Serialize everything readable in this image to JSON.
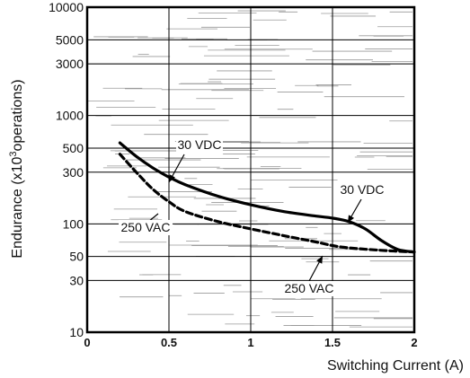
{
  "chart_data": {
    "type": "line",
    "title": "",
    "xlabel": "Switching Current (A)",
    "ylabel": "Endurance (x10³operations)",
    "ylabel_parts": {
      "prefix": "Endurance (x10",
      "sup": "3",
      "suffix": "operations)"
    },
    "xlim": [
      0,
      2
    ],
    "ylim": [
      10,
      10000
    ],
    "yscale": "log",
    "grid": true,
    "xticks": [
      {
        "value": 0,
        "label": "0"
      },
      {
        "value": 0.5,
        "label": "0.5"
      },
      {
        "value": 1,
        "label": "1"
      },
      {
        "value": 1.5,
        "label": "1.5"
      },
      {
        "value": 2,
        "label": "2"
      }
    ],
    "yticks": [
      {
        "value": 10000,
        "label": "10000"
      },
      {
        "value": 5000,
        "label": "5000"
      },
      {
        "value": 3000,
        "label": "3000"
      },
      {
        "value": 1000,
        "label": "1000"
      },
      {
        "value": 500,
        "label": "500"
      },
      {
        "value": 300,
        "label": "300"
      },
      {
        "value": 100,
        "label": "100"
      },
      {
        "value": 50,
        "label": "50"
      },
      {
        "value": 30,
        "label": "30"
      },
      {
        "value": 10,
        "label": "10"
      }
    ],
    "series": [
      {
        "name": "30 VDC",
        "style": "solid",
        "x": [
          0.2,
          0.3,
          0.4,
          0.5,
          0.6,
          0.8,
          1.0,
          1.2,
          1.4,
          1.5,
          1.6,
          1.7,
          1.8,
          1.9,
          2.0
        ],
        "y": [
          560,
          420,
          330,
          270,
          230,
          180,
          150,
          130,
          118,
          113,
          105,
          90,
          70,
          58,
          55
        ]
      },
      {
        "name": "250 VAC",
        "style": "dashed",
        "x": [
          0.2,
          0.3,
          0.4,
          0.5,
          0.6,
          0.8,
          1.0,
          1.2,
          1.4,
          1.5,
          1.6,
          1.8,
          2.0
        ],
        "y": [
          440,
          300,
          210,
          160,
          130,
          105,
          90,
          78,
          68,
          63,
          60,
          57,
          55
        ]
      }
    ],
    "annotations": [
      {
        "text": "30 VDC",
        "series": "30 VDC"
      },
      {
        "text": "250 VAC",
        "series": "250 VAC"
      },
      {
        "text": "30 VDC",
        "series": "30 VDC"
      },
      {
        "text": "250 VAC",
        "series": "250 VAC"
      }
    ]
  }
}
